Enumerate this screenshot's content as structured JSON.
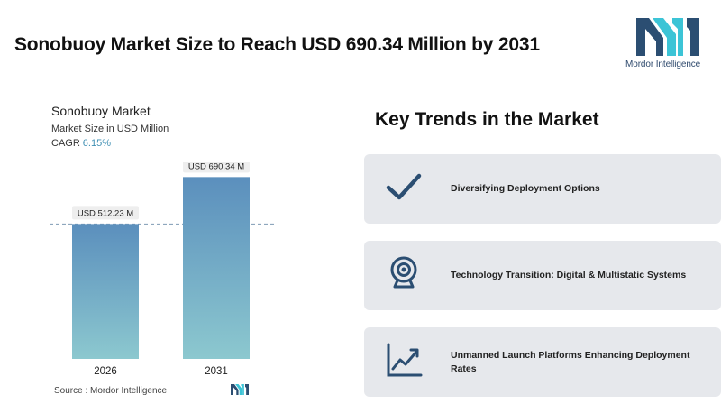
{
  "header": {
    "title": "Sonobuoy Market Size to Reach USD 690.34 Million by 2031"
  },
  "logo": {
    "brand_text": "Mordor Intelligence",
    "icon": "mordor-intelligence-logo-icon",
    "colors": {
      "dark": "#2b4e72",
      "light": "#3cc4d6"
    }
  },
  "chart_data": {
    "type": "bar",
    "title": "Sonobuoy Market",
    "subtitle": "Market Size in USD Million",
    "cagr_label": "CAGR",
    "cagr_value": "6.15%",
    "categories": [
      "2026",
      "2031"
    ],
    "values": [
      512.23,
      690.34
    ],
    "data_labels": [
      "USD 512.23 M",
      "USD 690.34 M"
    ],
    "ylim": [
      0,
      760
    ],
    "reference_line": 512.23,
    "grid": false,
    "colors": {
      "bar_top": "#5b8fbd",
      "bar_bottom": "#8cc8cf",
      "reference_line": "#7f9bb4"
    }
  },
  "source": {
    "text": "Source :  Mordor Intelligence"
  },
  "trends": {
    "title": "Key Trends in the Market",
    "items": [
      {
        "label": "Diversifying Deployment Options",
        "icon": "checkmark-icon"
      },
      {
        "label": "Technology Transition: Digital & Multistatic Systems",
        "icon": "webcam-icon"
      },
      {
        "label": "Unmanned Launch Platforms Enhancing Deployment Rates",
        "icon": "line-chart-icon"
      }
    ],
    "icon_color": "#2b4e72"
  }
}
